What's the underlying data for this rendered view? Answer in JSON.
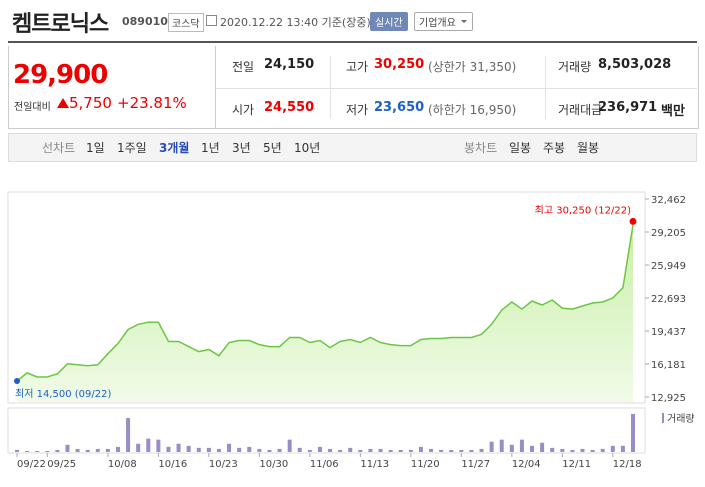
{
  "header": {
    "title": "켐트로닉스",
    "code": "089010",
    "market": "코스닥",
    "timestamp": "2020.12.22 13:40 기준(장중)",
    "realtime": "실시간",
    "company_info": "기업개요"
  },
  "quote": {
    "price": "29,900",
    "change_label": "전일대비",
    "change": "5,750",
    "change_pct": "+23.81%"
  },
  "stats": [
    [
      {
        "label": "전일",
        "value": "24,150"
      },
      {
        "label": "고가",
        "value": "30,250",
        "color": "#e00",
        "note": "(상한가 31,350)"
      },
      {
        "label": "거래량",
        "value": "8,503,028"
      }
    ],
    [
      {
        "label": "시가",
        "value": "24,550",
        "color": "#e00"
      },
      {
        "label": "저가",
        "value": "23,650",
        "color": "#1d5fc4",
        "note": "(하한가 16,950)"
      },
      {
        "label": "거래대금",
        "value": "236,971",
        "note": "백만"
      }
    ]
  ],
  "tabs": {
    "line_label": "선차트",
    "line": [
      "1일",
      "1주일",
      "3개월",
      "1년",
      "3년",
      "5년",
      "10년"
    ],
    "selected": 2,
    "candle_label": "봉차트",
    "candle": [
      "일봉",
      "주봉",
      "월봉"
    ]
  },
  "chart_data": {
    "type": "line",
    "color": "#6cc644",
    "volume_color": "#9b8bc9",
    "volume_label": "거래량",
    "categories": [
      "09/22",
      null,
      null,
      "09/25",
      null,
      null,
      null,
      null,
      null,
      "10/08",
      null,
      null,
      null,
      null,
      "10/16",
      null,
      null,
      null,
      null,
      "10/23",
      null,
      null,
      null,
      null,
      "10/30",
      null,
      null,
      null,
      null,
      "11/06",
      null,
      null,
      null,
      null,
      "11/13",
      null,
      null,
      null,
      null,
      "11/20",
      null,
      null,
      null,
      null,
      "11/27",
      null,
      null,
      null,
      null,
      "12/04",
      null,
      null,
      null,
      null,
      "12/11",
      null,
      null,
      null,
      null,
      "12/18",
      null,
      null
    ],
    "values": [
      14500,
      15300,
      14900,
      14900,
      15200,
      16200,
      16100,
      16000,
      16100,
      17200,
      18200,
      19600,
      20100,
      20300,
      20300,
      18400,
      18400,
      17900,
      17400,
      17600,
      17000,
      18300,
      18500,
      18500,
      18100,
      17900,
      17900,
      18800,
      18800,
      18300,
      18500,
      17800,
      18400,
      18600,
      18300,
      18800,
      18300,
      18100,
      18000,
      18000,
      18600,
      18700,
      18700,
      18800,
      18800,
      18800,
      19100,
      20100,
      21500,
      22300,
      21600,
      22400,
      22000,
      22500,
      21700,
      21600,
      21900,
      22200,
      22300,
      22700,
      23700,
      29900
    ],
    "volume": [
      460000,
      230000,
      230000,
      230000,
      460000,
      1610000,
      690000,
      460000,
      690000,
      690000,
      1150000,
      7590000,
      1840000,
      2990000,
      2760000,
      1150000,
      1840000,
      1380000,
      920000,
      920000,
      690000,
      1840000,
      920000,
      1150000,
      690000,
      460000,
      690000,
      2760000,
      920000,
      460000,
      1150000,
      690000,
      460000,
      920000,
      460000,
      690000,
      690000,
      460000,
      460000,
      460000,
      1150000,
      690000,
      460000,
      460000,
      460000,
      460000,
      690000,
      2300000,
      2760000,
      1610000,
      2760000,
      1380000,
      2070000,
      920000,
      690000,
      460000,
      690000,
      460000,
      690000,
      1380000,
      1380000,
      8503028
    ],
    "ylim": [
      12925,
      32462
    ],
    "yticks": [
      {
        "value": 12925,
        "label": "12,925"
      },
      {
        "value": 16181,
        "label": "16,181"
      },
      {
        "value": 19437,
        "label": "19,437"
      },
      {
        "value": 22693,
        "label": "22,693"
      },
      {
        "value": 25949,
        "label": "25,949"
      },
      {
        "value": 29205,
        "label": "29,205"
      },
      {
        "value": 32462,
        "label": "32,462"
      }
    ],
    "grid": false,
    "high": {
      "value": 30250,
      "label": "최고 30,250 (12/22)",
      "color": "#e00"
    },
    "low": {
      "value": 14500,
      "label": "최저 14,500 (09/22)",
      "color": "#1d5fc4"
    }
  }
}
